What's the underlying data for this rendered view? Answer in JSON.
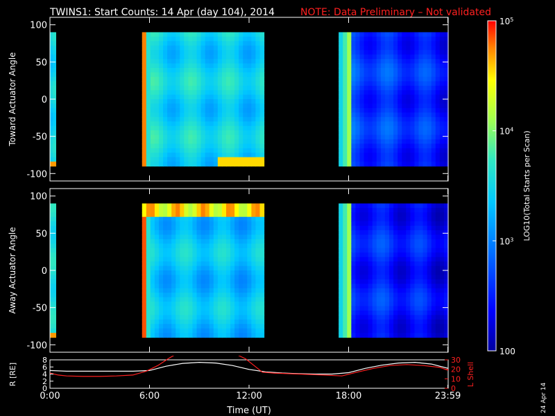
{
  "title": {
    "main": "TWINS1: Start Counts: 14 Apr (day 104), 2014",
    "note": "NOTE: Data Preliminary – Not validated"
  },
  "footer_date": "24 Apr 14",
  "colors": {
    "background": "#000000",
    "axes": "#ffffff",
    "note": "#ff2020",
    "lshell_line": "#ff2020",
    "r_line": "#ffffff"
  },
  "chart_data": [
    {
      "type": "heatmap",
      "name": "toward",
      "ylabel": "Toward Actuator Angle",
      "ylim": [
        -110,
        110
      ],
      "yticks": [
        100,
        50,
        0,
        -50,
        -100
      ],
      "xlim_hours": [
        0,
        24
      ],
      "angle_range": [
        -90,
        90
      ],
      "data_blocks": [
        {
          "start": 0.0,
          "end": 0.35,
          "base": 0.48,
          "edge": 0.9
        },
        {
          "start": 5.55,
          "end": 12.9,
          "base": 0.5,
          "edge": 0.92
        },
        {
          "start": 17.4,
          "end": 24.0,
          "base": 0.24,
          "edge": 0.7
        }
      ]
    },
    {
      "type": "heatmap",
      "name": "away",
      "ylabel": "Away Actuator Angle",
      "ylim": [
        -110,
        110
      ],
      "yticks": [
        100,
        50,
        0,
        -50,
        -100
      ],
      "xlim_hours": [
        0,
        24
      ],
      "angle_range": [
        -90,
        90
      ],
      "data_blocks": [
        {
          "start": 0.0,
          "end": 0.35,
          "base": 0.48,
          "edge": 0.9
        },
        {
          "start": 5.55,
          "end": 12.9,
          "base": 0.46,
          "edge": 0.95
        },
        {
          "start": 17.4,
          "end": 24.0,
          "base": 0.2,
          "edge": 0.72
        }
      ]
    },
    {
      "type": "line",
      "name": "orbit",
      "ylabel_left": "R [RE]",
      "ylabel_right": "L Shell",
      "xlabel": "Time (UT)",
      "xticks": [
        "0:00",
        "6:00",
        "12:00",
        "18:00",
        "23:59"
      ],
      "xtick_hours": [
        0,
        6,
        12,
        18,
        23.98
      ],
      "left_ylim": [
        0,
        8
      ],
      "left_yticks": [
        0,
        2,
        4,
        6,
        8
      ],
      "right_ylim": [
        0,
        30
      ],
      "right_yticks": [
        0,
        10,
        20,
        30
      ],
      "series": [
        {
          "name": "R",
          "axis": "left",
          "x": [
            0,
            1,
            2,
            3,
            4,
            5,
            6,
            7,
            8,
            9,
            10,
            11,
            12,
            13,
            14,
            15,
            16,
            17,
            18,
            19,
            20,
            21,
            22,
            23,
            24
          ],
          "y": [
            5.0,
            4.8,
            4.8,
            4.8,
            4.8,
            4.8,
            5.0,
            6.2,
            7.0,
            7.3,
            7.1,
            6.4,
            5.3,
            4.6,
            4.3,
            4.1,
            4.0,
            4.0,
            4.4,
            5.6,
            6.5,
            7.1,
            7.3,
            6.8,
            5.6
          ]
        },
        {
          "name": "L Shell",
          "axis": "right",
          "x": [
            0,
            0.5,
            1,
            2,
            3,
            4,
            5,
            5.8,
            6.5,
            7.2,
            7.6,
            11.2,
            11.8,
            12.3,
            12.8,
            13.5,
            15,
            16.5,
            17.6,
            18.5,
            19.5,
            20.5,
            21.5,
            22.5,
            23.5,
            24
          ],
          "y": [
            16,
            14,
            13,
            12.5,
            12.5,
            13,
            14,
            18,
            24,
            32,
            36,
            36,
            31,
            24,
            17,
            16,
            15,
            14,
            13,
            17,
            21,
            24,
            25,
            24,
            22,
            19
          ]
        }
      ]
    }
  ],
  "colorbar": {
    "label": "LOG10(Total Starts per Scan)",
    "ticks": [
      {
        "base": "10",
        "exp": "5",
        "value": 100000
      },
      {
        "base": "10",
        "exp": "4",
        "value": 10000
      },
      {
        "base": "10",
        "exp": "3",
        "value": 1000
      },
      {
        "base": "100",
        "exp": "",
        "value": 100
      }
    ],
    "range": [
      100,
      100000
    ],
    "scale": "log"
  }
}
